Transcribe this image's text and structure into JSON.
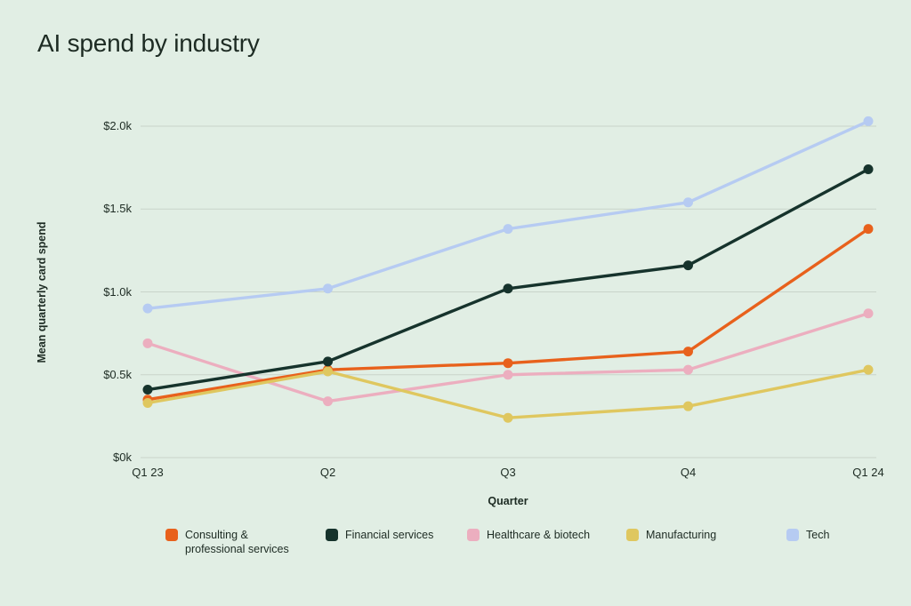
{
  "header": {
    "title": "AI spend by industry"
  },
  "colors": {
    "background": "#e1eee4",
    "text": "#1d2b23",
    "gridline": "#c9d4ca"
  },
  "chart_data": {
    "type": "line",
    "title": "AI spend by industry",
    "xlabel": "Quarter",
    "ylabel": "Mean quarterly card spend",
    "units": "USD thousands per quarter",
    "categories": [
      "Q1 23",
      "Q2",
      "Q3",
      "Q4",
      "Q1 24"
    ],
    "y_ticks": [
      {
        "label": "$0k",
        "value": 0
      },
      {
        "label": "$0.5k",
        "value": 0.5
      },
      {
        "label": "$1.0k",
        "value": 1.0
      },
      {
        "label": "$1.5k",
        "value": 1.5
      },
      {
        "label": "$2.0k",
        "value": 2.0
      }
    ],
    "ylim": [
      0,
      2.1
    ],
    "grid": true,
    "legend_position": "bottom",
    "draw_order": [
      2,
      0,
      3,
      1,
      4
    ],
    "series": [
      {
        "name": "Consulting & professional services",
        "legend_lines": [
          "Consulting &",
          "professional services"
        ],
        "color": "#e8611c",
        "values": [
          0.35,
          0.53,
          0.57,
          0.64,
          1.38
        ]
      },
      {
        "name": "Financial services",
        "legend_lines": [
          "Financial services"
        ],
        "color": "#16332c",
        "values": [
          0.41,
          0.58,
          1.02,
          1.16,
          1.74
        ]
      },
      {
        "name": "Healthcare & biotech",
        "legend_lines": [
          "Healthcare & biotech"
        ],
        "color": "#ecaebf",
        "values": [
          0.69,
          0.34,
          0.5,
          0.53,
          0.87
        ]
      },
      {
        "name": "Manufacturing",
        "legend_lines": [
          "Manufacturing"
        ],
        "color": "#dfc75f",
        "values": [
          0.33,
          0.52,
          0.24,
          0.31,
          0.53
        ]
      },
      {
        "name": "Tech",
        "legend_lines": [
          "Tech"
        ],
        "color": "#b6cbf2",
        "values": [
          0.9,
          1.02,
          1.38,
          1.54,
          2.03
        ]
      }
    ]
  }
}
